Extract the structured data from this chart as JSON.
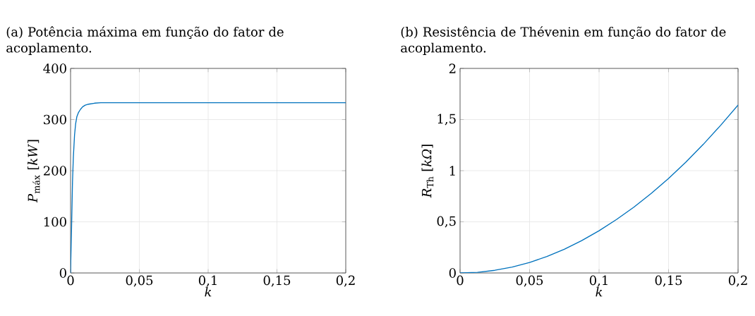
{
  "chart_data": [
    {
      "type": "line",
      "title": "(a) Potência máxima em função do fator de acoplamento.",
      "xlabel": "k",
      "ylabel": "*P*$_{máx}$ [*kW*]",
      "x": [
        0,
        0.0003,
        0.0007,
        0.001,
        0.0014,
        0.002,
        0.0029,
        0.0037,
        0.0046,
        0.0058,
        0.0072,
        0.0088,
        0.0106,
        0.013,
        0.0174,
        0.022,
        0.031,
        0.045,
        0.07,
        0.1,
        0.15,
        0.2
      ],
      "series": [
        {
          "color": "#0072bd",
          "values": [
            0,
            40,
            86,
            125,
            178,
            225,
            270,
            292,
            306,
            314,
            320,
            325,
            328,
            330,
            332,
            333,
            333,
            333,
            333,
            333,
            333,
            333
          ]
        }
      ],
      "xlim": [
        0,
        0.2
      ],
      "ylim": [
        0,
        400
      ],
      "xticks": [
        0,
        {
          "value": 0.05,
          "label": "0,05"
        },
        {
          "value": 0.1,
          "label": "0,1"
        },
        {
          "value": 0.15,
          "label": "0,15"
        },
        {
          "value": 0.2,
          "label": "0,2"
        }
      ],
      "yticks": [
        0,
        100,
        200,
        300,
        400
      ],
      "grid": true
    },
    {
      "type": "line",
      "title": "(b) Resistência de Thévenin em função do fator de acoplamento.",
      "xlabel": "k",
      "ylabel": "*R*$_{Th}$ [*kΩ*]",
      "x": [
        0,
        0.0125,
        0.025,
        0.0375,
        0.05,
        0.0625,
        0.075,
        0.0875,
        0.1,
        0.1125,
        0.125,
        0.1375,
        0.15,
        0.1625,
        0.175,
        0.1875,
        0.2
      ],
      "series": [
        {
          "color": "#0072bd",
          "values": [
            0,
            0.006,
            0.026,
            0.058,
            0.103,
            0.161,
            0.232,
            0.316,
            0.413,
            0.522,
            0.643,
            0.777,
            0.924,
            1.085,
            1.258,
            1.444,
            1.642
          ]
        }
      ],
      "xlim": [
        0,
        0.2
      ],
      "ylim": [
        0,
        2
      ],
      "xticks": [
        0,
        {
          "value": 0.05,
          "label": "0,05"
        },
        {
          "value": 0.1,
          "label": "0,1"
        },
        {
          "value": 0.15,
          "label": "0,15"
        },
        {
          "value": 0.2,
          "label": "0,2"
        }
      ],
      "yticks": [
        0,
        {
          "value": 0.5,
          "label": "0,5"
        },
        1,
        {
          "value": 1.5,
          "label": "1,5"
        },
        2
      ],
      "grid": true
    }
  ]
}
